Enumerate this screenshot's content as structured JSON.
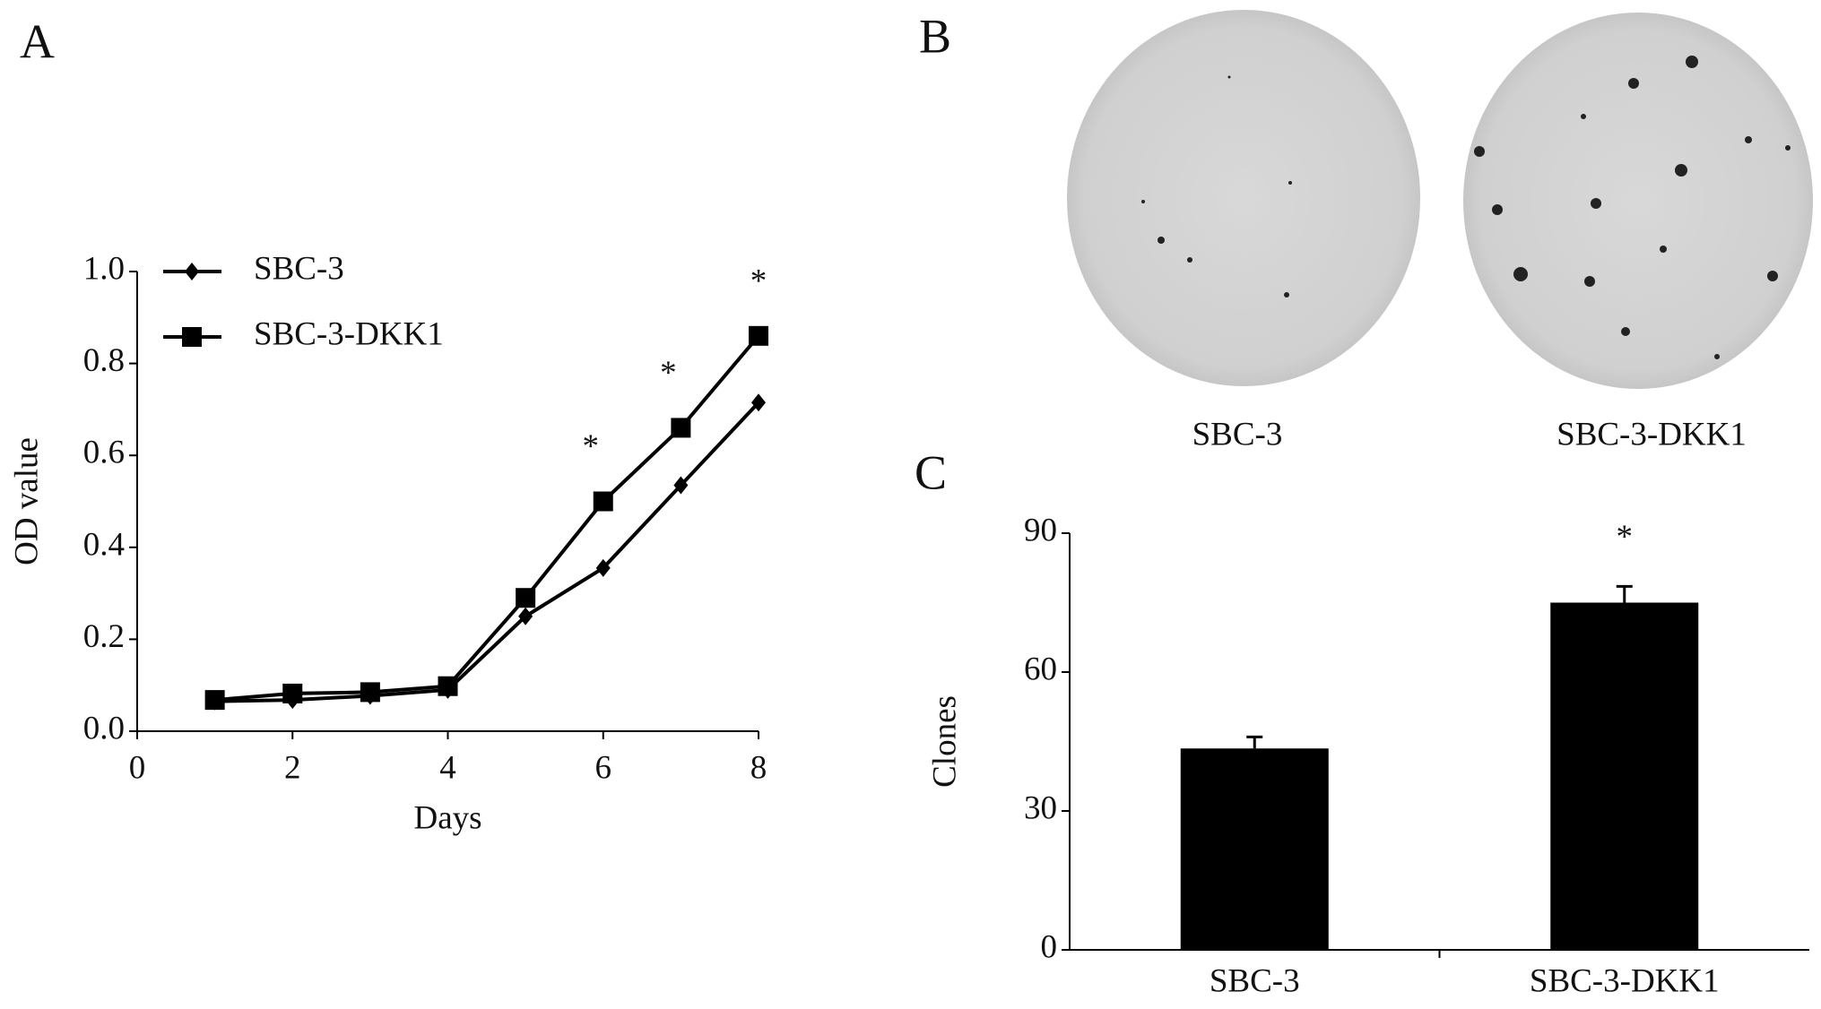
{
  "chart_data": [
    {
      "type": "line",
      "panel": "A",
      "xlabel": "Days",
      "ylabel": "OD value",
      "x": [
        1,
        2,
        3,
        4,
        5,
        6,
        7,
        8
      ],
      "series": [
        {
          "name": "SBC-3",
          "color": "#000000",
          "marker": "diamond",
          "values": [
            0.065,
            0.068,
            0.077,
            0.09,
            0.25,
            0.355,
            0.535,
            0.715
          ]
        },
        {
          "name": "SBC-3-DKK1",
          "color": "#000000",
          "marker": "square",
          "values": [
            0.068,
            0.082,
            0.085,
            0.098,
            0.29,
            0.5,
            0.66,
            0.86
          ]
        }
      ],
      "annotations": [
        {
          "x": 6,
          "text": "*"
        },
        {
          "x": 7,
          "text": "*"
        },
        {
          "x": 8,
          "text": "*"
        }
      ],
      "xlim": [
        0,
        8
      ],
      "xticks": [
        0,
        2,
        4,
        6,
        8
      ],
      "ylim": [
        0,
        1
      ],
      "yticks": [
        {
          "value": 0,
          "label": "0.0"
        },
        {
          "value": 0.2,
          "label": "0.2"
        },
        {
          "value": 0.4,
          "label": "0.4"
        },
        {
          "value": 0.6,
          "label": "0.6"
        },
        {
          "value": 0.8,
          "label": "0.8"
        },
        {
          "value": 1,
          "label": "1.0"
        }
      ],
      "legend": "top-left"
    },
    {
      "type": "bar",
      "panel": "C",
      "ylabel": "Clones",
      "categories": [
        "SBC-3",
        "SBC-3-DKK1"
      ],
      "values": [
        43.5,
        75
      ],
      "errors": [
        2.5,
        3.5
      ],
      "color": "#000000",
      "annotations": [
        {
          "category": 1,
          "text": "*"
        }
      ],
      "ylim": [
        0,
        90
      ],
      "yticks": [
        0,
        30,
        60,
        90
      ]
    }
  ],
  "panel_b": {
    "panel": "B",
    "captions": [
      "SBC-3",
      "SBC-3-DKK1"
    ]
  }
}
